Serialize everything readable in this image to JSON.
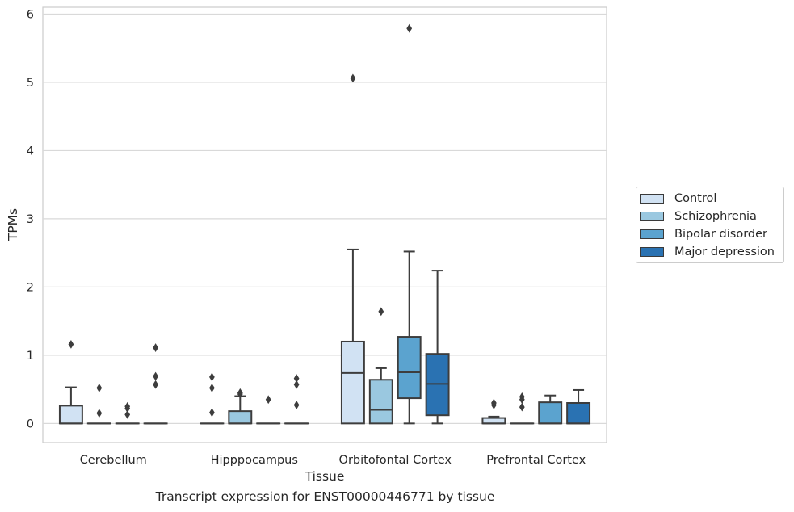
{
  "chart_data": {
    "type": "box",
    "title": "",
    "caption": "Transcript expression for ENST00000446771 by tissue",
    "xlabel": "Tissue",
    "ylabel": "TPMs",
    "ylim": [
      -0.28,
      6.1
    ],
    "yticks": [
      "0",
      "1",
      "2",
      "3",
      "4",
      "5",
      "6"
    ],
    "grid": true,
    "legend_position": "right",
    "categories": [
      "Cerebellum",
      "Hipppocampus",
      "Orbitofontal Cortex",
      "Prefrontal Cortex"
    ],
    "series": [
      {
        "name": "Control",
        "color": "#d1e2f3",
        "boxes": [
          {
            "q1": 0,
            "median": 0,
            "q3": 0.26,
            "whisker_low": 0,
            "whisker_high": 0.53,
            "outliers": [
              1.16
            ]
          },
          {
            "q1": 0,
            "median": 0,
            "q3": 0,
            "whisker_low": 0,
            "whisker_high": 0,
            "outliers": [
              0.68,
              0.52,
              0.16
            ]
          },
          {
            "q1": 0,
            "median": 0.74,
            "q3": 1.2,
            "whisker_low": 0,
            "whisker_high": 2.55,
            "outliers": [
              5.06
            ]
          },
          {
            "q1": 0,
            "median": 0,
            "q3": 0.08,
            "whisker_low": 0,
            "whisker_high": 0.1,
            "outliers": [
              0.3,
              0.27
            ]
          }
        ]
      },
      {
        "name": "Schizophrenia",
        "color": "#9ac8e0",
        "boxes": [
          {
            "q1": 0,
            "median": 0,
            "q3": 0,
            "whisker_low": 0,
            "whisker_high": 0,
            "outliers": [
              0.52,
              0.15
            ]
          },
          {
            "q1": 0,
            "median": 0,
            "q3": 0.18,
            "whisker_low": 0,
            "whisker_high": 0.4,
            "outliers": [
              0.45,
              0.43
            ]
          },
          {
            "q1": 0,
            "median": 0.2,
            "q3": 0.64,
            "whisker_low": 0,
            "whisker_high": 0.81,
            "outliers": [
              1.64
            ]
          },
          {
            "q1": 0,
            "median": 0,
            "q3": 0,
            "whisker_low": 0,
            "whisker_high": 0,
            "outliers": [
              0.39,
              0.35,
              0.24
            ]
          }
        ]
      },
      {
        "name": "Bipolar disorder",
        "color": "#5ba3cf",
        "boxes": [
          {
            "q1": 0,
            "median": 0,
            "q3": 0,
            "whisker_low": 0,
            "whisker_high": 0,
            "outliers": [
              0.25,
              0.22,
              0.13
            ]
          },
          {
            "q1": 0,
            "median": 0,
            "q3": 0,
            "whisker_low": 0,
            "whisker_high": 0,
            "outliers": [
              0.35
            ]
          },
          {
            "q1": 0.37,
            "median": 0.75,
            "q3": 1.27,
            "whisker_low": 0,
            "whisker_high": 2.52,
            "outliers": [
              5.79
            ]
          },
          {
            "q1": 0,
            "median": 0,
            "q3": 0.31,
            "whisker_low": 0,
            "whisker_high": 0.41,
            "outliers": []
          }
        ]
      },
      {
        "name": "Major depression",
        "color": "#2a72b2",
        "boxes": [
          {
            "q1": 0,
            "median": 0,
            "q3": 0,
            "whisker_low": 0,
            "whisker_high": 0,
            "outliers": [
              1.11,
              0.69,
              0.57
            ]
          },
          {
            "q1": 0,
            "median": 0,
            "q3": 0,
            "whisker_low": 0,
            "whisker_high": 0,
            "outliers": [
              0.66,
              0.57,
              0.27
            ]
          },
          {
            "q1": 0.12,
            "median": 0.58,
            "q3": 1.02,
            "whisker_low": 0,
            "whisker_high": 2.24,
            "outliers": []
          },
          {
            "q1": 0,
            "median": 0,
            "q3": 0.3,
            "whisker_low": 0,
            "whisker_high": 0.49,
            "outliers": []
          }
        ]
      }
    ]
  }
}
